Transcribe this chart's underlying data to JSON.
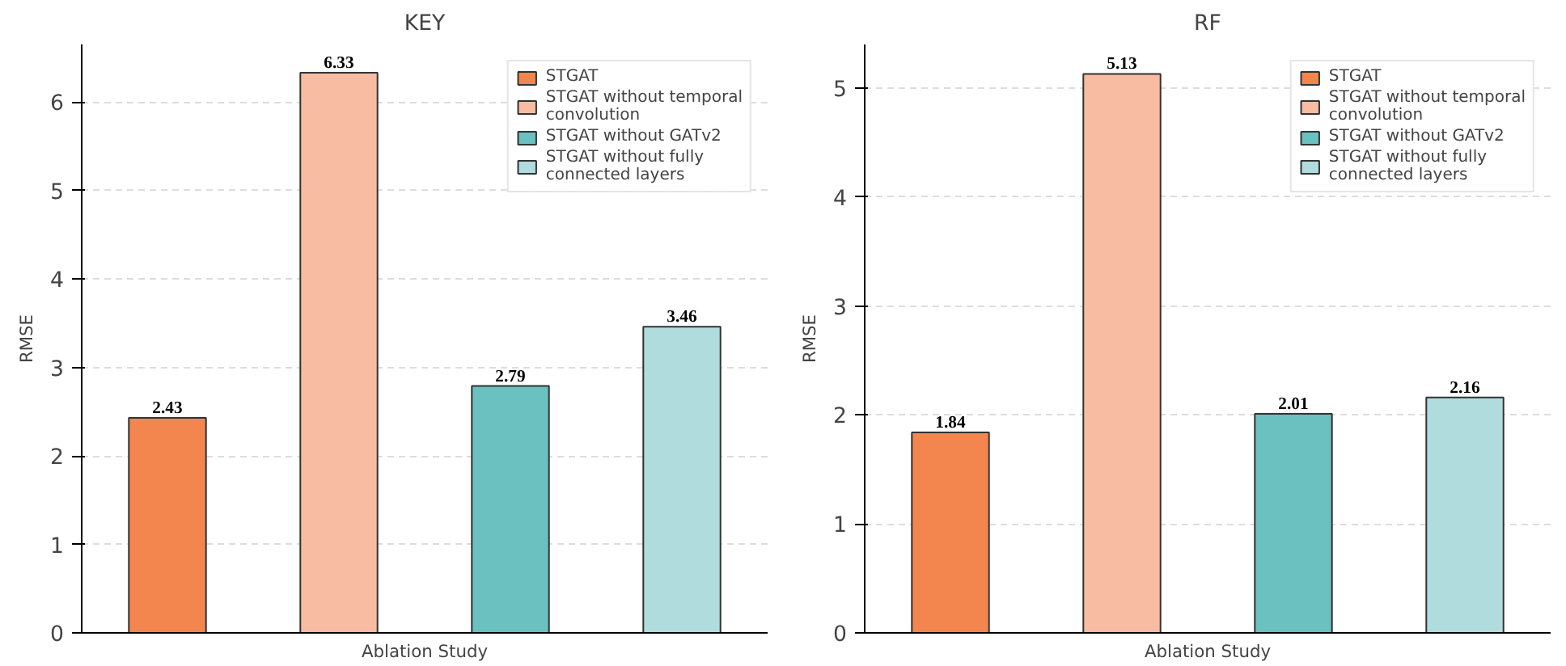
{
  "chart_data": [
    {
      "type": "bar",
      "title": "KEY",
      "xlabel": "Ablation Study",
      "ylabel": "RMSE",
      "categories": [
        null,
        null,
        null,
        null
      ],
      "series": [
        {
          "name": "STGAT",
          "color": "#f3864f",
          "values": [
            2.43,
            null,
            null,
            null
          ]
        },
        {
          "name": "STGAT without temporal convolution",
          "color": "#f8bca2",
          "values": [
            null,
            6.33,
            null,
            null
          ]
        },
        {
          "name": "STGAT without GATv2",
          "color": "#6bc0c0",
          "values": [
            null,
            null,
            2.79,
            null
          ]
        },
        {
          "name": "STGAT without fully connected layers",
          "color": "#b0dcdd",
          "values": [
            null,
            null,
            null,
            3.46
          ]
        }
      ],
      "ylim": [
        0,
        6.65
      ],
      "yticks": [
        0,
        1,
        2,
        3,
        4,
        5,
        6
      ],
      "grid": "y",
      "legend": "top right",
      "data_labels": true
    },
    {
      "type": "bar",
      "title": "RF",
      "xlabel": "Ablation Study",
      "ylabel": "RMSE",
      "categories": [
        null,
        null,
        null,
        null
      ],
      "series": [
        {
          "name": "STGAT",
          "color": "#f3864f",
          "values": [
            1.84,
            null,
            null,
            null
          ]
        },
        {
          "name": "STGAT without temporal convolution",
          "color": "#f8bca2",
          "values": [
            null,
            5.13,
            null,
            null
          ]
        },
        {
          "name": "STGAT without GATv2",
          "color": "#6bc0c0",
          "values": [
            null,
            null,
            2.01,
            null
          ]
        },
        {
          "name": "STGAT without fully connected layers",
          "color": "#b0dcdd",
          "values": [
            null,
            null,
            null,
            2.16
          ]
        }
      ],
      "ylim": [
        0,
        5.4
      ],
      "yticks": [
        0,
        1,
        2,
        3,
        4,
        5
      ],
      "grid": "y",
      "legend": "top right",
      "data_labels": true
    }
  ]
}
